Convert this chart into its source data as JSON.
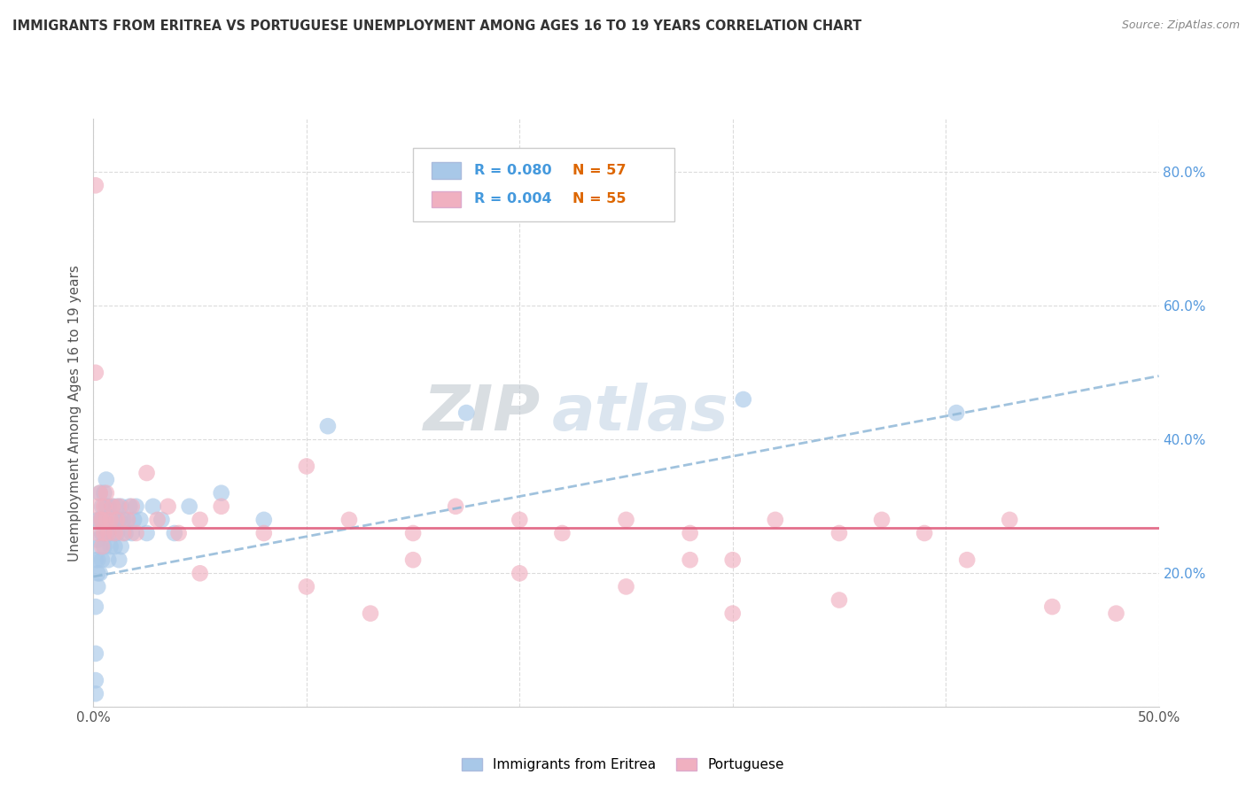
{
  "title": "IMMIGRANTS FROM ERITREA VS PORTUGUESE UNEMPLOYMENT AMONG AGES 16 TO 19 YEARS CORRELATION CHART",
  "source": "Source: ZipAtlas.com",
  "ylabel": "Unemployment Among Ages 16 to 19 years",
  "xlim": [
    0.0,
    0.5
  ],
  "ylim": [
    0.0,
    0.88
  ],
  "xticks": [
    0.0,
    0.1,
    0.2,
    0.3,
    0.4,
    0.5
  ],
  "yticks": [
    0.0,
    0.2,
    0.4,
    0.6,
    0.8
  ],
  "yticklabels_right": [
    "",
    "20.0%",
    "40.0%",
    "60.0%",
    "80.0%"
  ],
  "legend_r1": "0.080",
  "legend_n1": "57",
  "legend_r2": "0.004",
  "legend_n2": "55",
  "legend_label1": "Immigrants from Eritrea",
  "legend_label2": "Portuguese",
  "watermark_zip": "ZIP",
  "watermark_atlas": "atlas",
  "blue_color": "#a8c8e8",
  "pink_color": "#f0b0c0",
  "blue_line_color": "#90b8d8",
  "pink_line_color": "#e06080",
  "blue_trend_x": [
    0.0,
    0.5
  ],
  "blue_trend_y": [
    0.195,
    0.495
  ],
  "pink_trend_x": [
    0.0,
    0.5
  ],
  "pink_trend_y": [
    0.268,
    0.268
  ],
  "eritrea_x": [
    0.001,
    0.001,
    0.001,
    0.001,
    0.001,
    0.002,
    0.002,
    0.002,
    0.002,
    0.002,
    0.003,
    0.003,
    0.003,
    0.003,
    0.004,
    0.004,
    0.004,
    0.005,
    0.005,
    0.005,
    0.006,
    0.006,
    0.006,
    0.007,
    0.007,
    0.007,
    0.008,
    0.008,
    0.009,
    0.009,
    0.01,
    0.01,
    0.011,
    0.011,
    0.012,
    0.012,
    0.013,
    0.013,
    0.014,
    0.015,
    0.016,
    0.017,
    0.018,
    0.019,
    0.02,
    0.022,
    0.025,
    0.028,
    0.032,
    0.038,
    0.045,
    0.06,
    0.08,
    0.11,
    0.175,
    0.305,
    0.405
  ],
  "eritrea_y": [
    0.02,
    0.04,
    0.08,
    0.15,
    0.22,
    0.18,
    0.22,
    0.25,
    0.2,
    0.28,
    0.2,
    0.24,
    0.28,
    0.32,
    0.22,
    0.26,
    0.3,
    0.24,
    0.28,
    0.32,
    0.26,
    0.3,
    0.34,
    0.22,
    0.26,
    0.3,
    0.24,
    0.28,
    0.26,
    0.3,
    0.24,
    0.28,
    0.26,
    0.3,
    0.22,
    0.28,
    0.24,
    0.3,
    0.28,
    0.26,
    0.28,
    0.3,
    0.26,
    0.28,
    0.3,
    0.28,
    0.26,
    0.3,
    0.28,
    0.26,
    0.3,
    0.32,
    0.28,
    0.42,
    0.44,
    0.46,
    0.44
  ],
  "portuguese_x": [
    0.001,
    0.001,
    0.002,
    0.002,
    0.003,
    0.003,
    0.004,
    0.004,
    0.005,
    0.005,
    0.006,
    0.006,
    0.007,
    0.008,
    0.009,
    0.01,
    0.011,
    0.012,
    0.014,
    0.016,
    0.018,
    0.02,
    0.025,
    0.03,
    0.035,
    0.04,
    0.05,
    0.06,
    0.08,
    0.1,
    0.12,
    0.15,
    0.17,
    0.2,
    0.22,
    0.25,
    0.28,
    0.3,
    0.32,
    0.35,
    0.37,
    0.39,
    0.41,
    0.43,
    0.45,
    0.05,
    0.1,
    0.15,
    0.2,
    0.25,
    0.3,
    0.35,
    0.13,
    0.28,
    0.48
  ],
  "portuguese_y": [
    0.78,
    0.5,
    0.3,
    0.26,
    0.28,
    0.32,
    0.24,
    0.28,
    0.26,
    0.3,
    0.28,
    0.32,
    0.26,
    0.28,
    0.3,
    0.26,
    0.28,
    0.3,
    0.26,
    0.28,
    0.3,
    0.26,
    0.35,
    0.28,
    0.3,
    0.26,
    0.28,
    0.3,
    0.26,
    0.36,
    0.28,
    0.26,
    0.3,
    0.28,
    0.26,
    0.28,
    0.26,
    0.22,
    0.28,
    0.26,
    0.28,
    0.26,
    0.22,
    0.28,
    0.15,
    0.2,
    0.18,
    0.22,
    0.2,
    0.18,
    0.14,
    0.16,
    0.14,
    0.22,
    0.14
  ],
  "grid_color": "#d8d8d8",
  "bg_color": "#ffffff",
  "title_color": "#333333",
  "source_color": "#888888",
  "ylabel_color": "#555555",
  "right_tick_color": "#5599dd",
  "r_color": "#4499dd",
  "n_color": "#dd6600"
}
